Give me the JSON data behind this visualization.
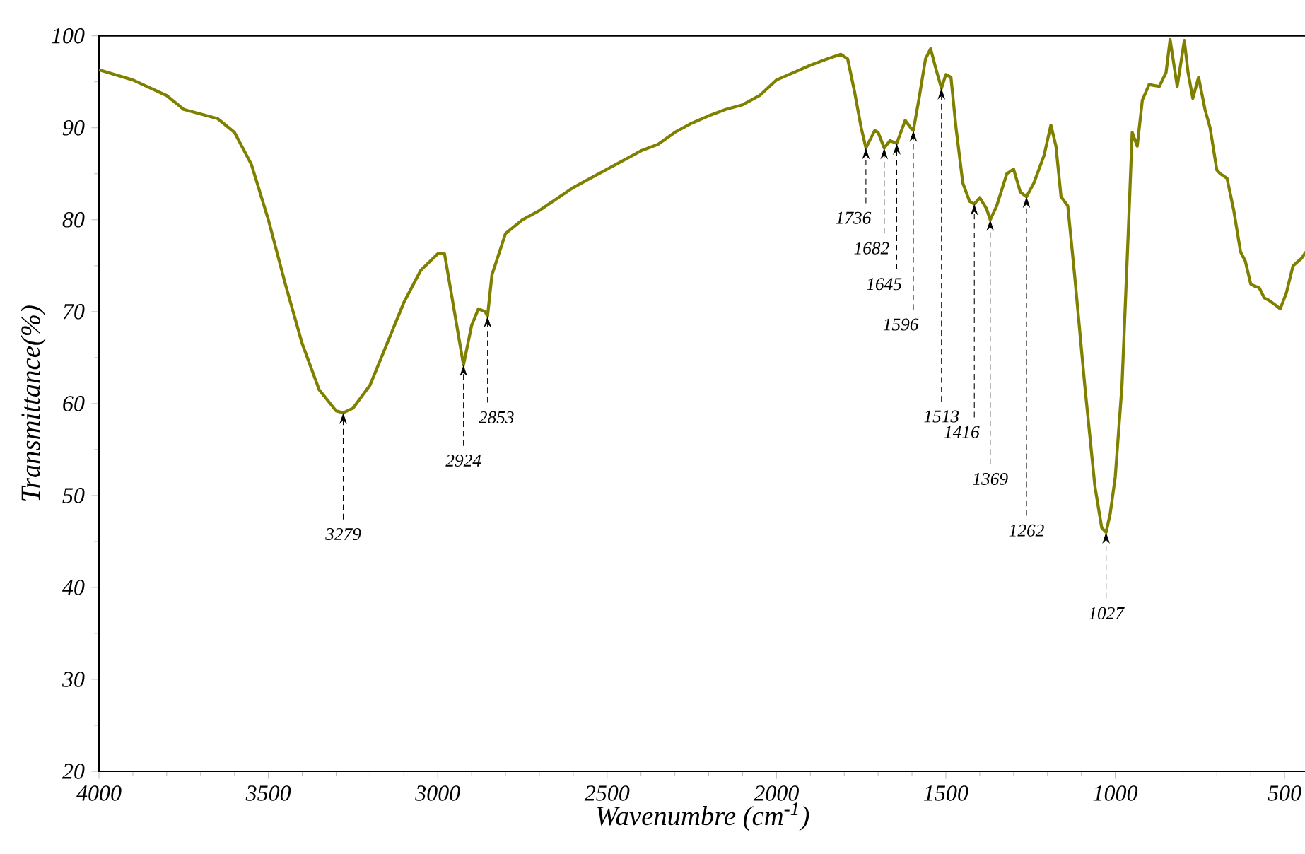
{
  "chart_data": {
    "type": "line",
    "xlabel": "Wavenumbre (cm$^{-1}$)",
    "ylabel": "Transmittance(%)",
    "xlim": [
      4000,
      437
    ],
    "ylim": [
      20,
      100
    ],
    "xticks": [
      4000,
      3500,
      3000,
      2500,
      2000,
      1500,
      1000,
      500
    ],
    "yticks": [
      20,
      30,
      40,
      50,
      60,
      70,
      80,
      90,
      100
    ],
    "series": [
      {
        "color": "#808000",
        "x": [
          4000,
          3900,
          3800,
          3750,
          3650,
          3600,
          3550,
          3500,
          3450,
          3400,
          3350,
          3300,
          3279,
          3250,
          3200,
          3150,
          3100,
          3050,
          3000,
          2980,
          2960,
          2924,
          2900,
          2880,
          2860,
          2853,
          2840,
          2800,
          2750,
          2700,
          2600,
          2500,
          2450,
          2400,
          2350,
          2300,
          2250,
          2200,
          2150,
          2100,
          2050,
          2000,
          1950,
          1900,
          1850,
          1810,
          1790,
          1770,
          1750,
          1736,
          1710,
          1700,
          1682,
          1665,
          1645,
          1620,
          1600,
          1596,
          1580,
          1560,
          1545,
          1530,
          1513,
          1500,
          1485,
          1470,
          1450,
          1430,
          1416,
          1400,
          1380,
          1369,
          1350,
          1320,
          1300,
          1280,
          1262,
          1240,
          1210,
          1190,
          1175,
          1160,
          1140,
          1120,
          1090,
          1060,
          1040,
          1027,
          1015,
          1000,
          980,
          960,
          950,
          935,
          920,
          900,
          870,
          850,
          838,
          817,
          796,
          785,
          771,
          754,
          735,
          720,
          700,
          690,
          670,
          650,
          630,
          616,
          600,
          590,
          575,
          560,
          545,
          530,
          513,
          495,
          475,
          450,
          437
        ],
        "values": [
          96.3,
          95.2,
          93.5,
          92.0,
          91.0,
          89.5,
          86,
          80,
          73,
          66.5,
          61.5,
          59.2,
          59,
          59.5,
          62,
          66.5,
          71,
          74.5,
          76.3,
          76.3,
          72,
          64.2,
          68.5,
          70.3,
          70,
          69.5,
          74,
          78.5,
          80,
          81,
          83.5,
          85.5,
          86.5,
          87.5,
          88.2,
          89.5,
          90.5,
          91.3,
          92,
          92.5,
          93.5,
          95.2,
          96,
          96.8,
          97.5,
          98,
          97.5,
          94,
          90,
          87.8,
          89.7,
          89.5,
          87.8,
          88.6,
          88.3,
          90.8,
          89.8,
          89.7,
          93,
          97.5,
          98.6,
          96.5,
          94.3,
          95.8,
          95.5,
          90,
          84,
          82,
          81.7,
          82.4,
          81.2,
          80,
          81.5,
          85,
          85.5,
          83,
          82.5,
          84,
          87,
          90.3,
          88,
          82.5,
          81.5,
          74,
          62,
          51,
          46.5,
          46,
          48,
          52,
          62,
          80,
          89.5,
          88,
          93,
          94.7,
          94.5,
          96,
          99.6,
          94.5,
          99.5,
          96,
          93.2,
          95.5,
          92,
          90,
          85.4,
          85,
          84.5,
          81,
          76.5,
          75.5,
          73,
          72.8,
          72.6,
          71.5,
          71.2,
          70.8,
          70.3,
          72,
          75,
          75.8,
          76.5
        ]
      }
    ],
    "annotations": [
      {
        "text": "3279",
        "x": 3279,
        "y": 59
      },
      {
        "text": "2924",
        "x": 2924,
        "y": 64.2
      },
      {
        "text": "2853",
        "x": 2853,
        "y": 69.5
      },
      {
        "text": "1736",
        "x": 1736,
        "y": 87.8
      },
      {
        "text": "1682",
        "x": 1682,
        "y": 87.8
      },
      {
        "text": "1645",
        "x": 1645,
        "y": 88.3
      },
      {
        "text": "1596",
        "x": 1596,
        "y": 89.7
      },
      {
        "text": "1513",
        "x": 1513,
        "y": 94.3
      },
      {
        "text": "1416",
        "x": 1416,
        "y": 81.7
      },
      {
        "text": "1369",
        "x": 1369,
        "y": 80
      },
      {
        "text": "1262",
        "x": 1262,
        "y": 82.5
      },
      {
        "text": "1027",
        "x": 1027,
        "y": 46
      }
    ]
  }
}
